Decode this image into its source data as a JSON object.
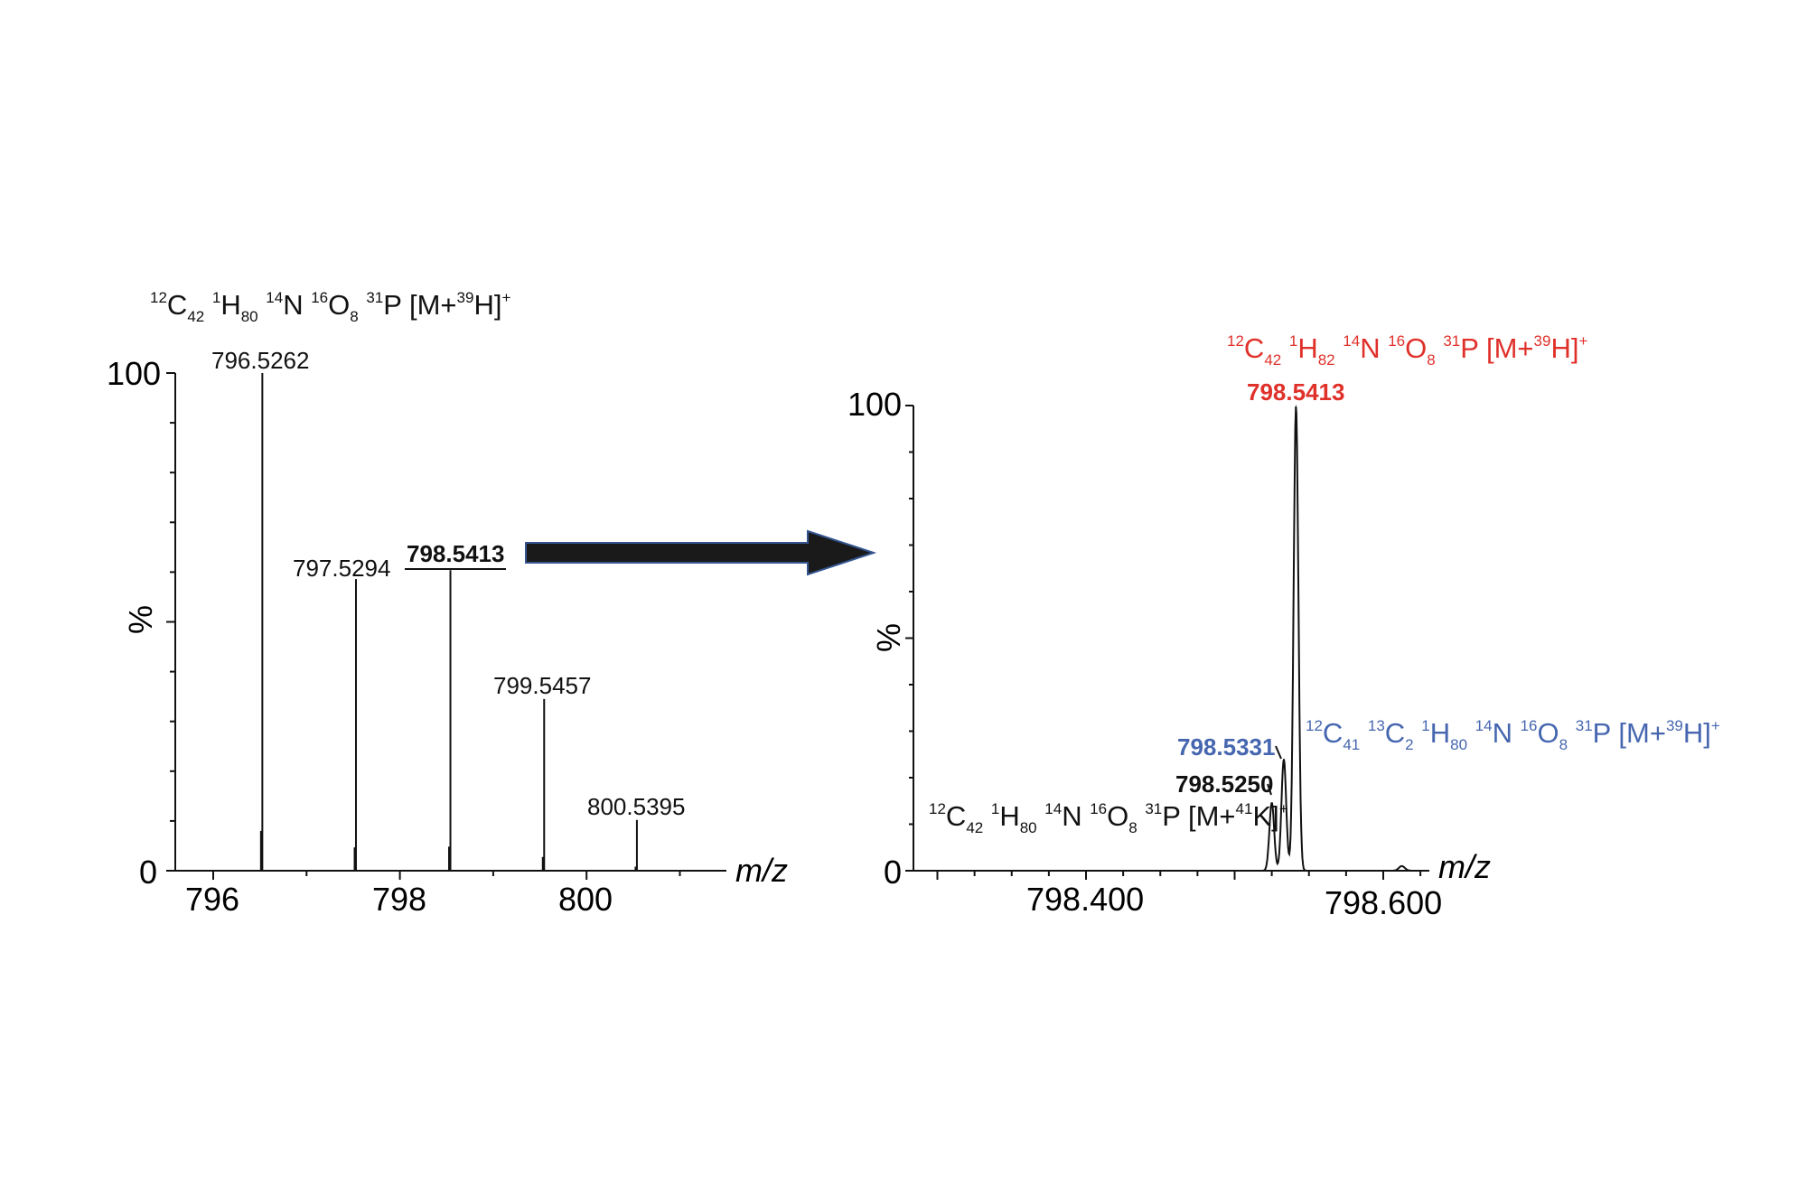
{
  "colors": {
    "black": "#111111",
    "red": "#e0302a",
    "blue": "#4667b0",
    "arrow_fill": "#1a1a1a",
    "arrow_stroke": "#34558f"
  },
  "chart_data": [
    {
      "type": "bar",
      "xlabel": "m/z",
      "ylabel": "%",
      "xlim": [
        795.6,
        801.5
      ],
      "ylim": [
        0,
        100
      ],
      "x_ticks": [
        "796",
        "798",
        "800"
      ],
      "y_ticks": [
        "0",
        "100"
      ],
      "grid": false,
      "formula": [
        {
          "s": "sup",
          "t": "12"
        },
        {
          "t": "C"
        },
        {
          "s": "sub",
          "t": "42"
        },
        {
          "t": " "
        },
        {
          "s": "sup",
          "t": "1"
        },
        {
          "t": "H"
        },
        {
          "s": "sub",
          "t": "80"
        },
        {
          "t": " "
        },
        {
          "s": "sup",
          "t": "14"
        },
        {
          "t": "N "
        },
        {
          "s": "sup",
          "t": "16"
        },
        {
          "t": "O"
        },
        {
          "s": "sub",
          "t": "8"
        },
        {
          "t": " "
        },
        {
          "s": "sup",
          "t": "31"
        },
        {
          "t": "P [M+"
        },
        {
          "s": "sup",
          "t": "39"
        },
        {
          "t": "H]"
        },
        {
          "s": "sup",
          "t": "+"
        }
      ],
      "peaks": [
        {
          "x": 796.5262,
          "y": 100,
          "label": "796.5262"
        },
        {
          "x": 797.5294,
          "y": 58.6,
          "label": "797.5294"
        },
        {
          "x": 798.5413,
          "y": 60.4,
          "label": "798.5413",
          "bold": true,
          "underline": true
        },
        {
          "x": 799.5457,
          "y": 34.5,
          "label": "799.5457"
        },
        {
          "x": 800.5395,
          "y": 10.2,
          "label": "800.5395"
        }
      ]
    },
    {
      "type": "line",
      "xlabel": "m/z",
      "ylabel": "%",
      "xlim": [
        798.284,
        798.631
      ],
      "ylim": [
        0,
        100
      ],
      "x_ticks": [
        "798.400",
        "798.600"
      ],
      "y_ticks": [
        "0",
        "100"
      ],
      "grid": false,
      "peaks": [
        {
          "x": 798.525,
          "y": 14.6,
          "label": "798.5250",
          "color": "black",
          "formula": [
            {
              "s": "sup",
              "t": "12"
            },
            {
              "t": "C"
            },
            {
              "s": "sub",
              "t": "42"
            },
            {
              "t": " "
            },
            {
              "s": "sup",
              "t": "1"
            },
            {
              "t": "H"
            },
            {
              "s": "sub",
              "t": "80"
            },
            {
              "t": " "
            },
            {
              "s": "sup",
              "t": "14"
            },
            {
              "t": "N "
            },
            {
              "s": "sup",
              "t": "16"
            },
            {
              "t": "O"
            },
            {
              "s": "sub",
              "t": "8"
            },
            {
              "t": " "
            },
            {
              "s": "sup",
              "t": "31"
            },
            {
              "t": "P [M+"
            },
            {
              "s": "sup",
              "t": "41"
            },
            {
              "t": "K]"
            },
            {
              "s": "sup",
              "t": "+"
            }
          ]
        },
        {
          "x": 798.5331,
          "y": 24,
          "label": "798.5331",
          "color": "blue",
          "formula": [
            {
              "s": "sup",
              "t": "12"
            },
            {
              "t": "C"
            },
            {
              "s": "sub",
              "t": "41"
            },
            {
              "t": " "
            },
            {
              "s": "sup",
              "t": "13"
            },
            {
              "t": "C"
            },
            {
              "s": "sub",
              "t": "2"
            },
            {
              "t": " "
            },
            {
              "s": "sup",
              "t": "1"
            },
            {
              "t": "H"
            },
            {
              "s": "sub",
              "t": "80"
            },
            {
              "t": " "
            },
            {
              "s": "sup",
              "t": "14"
            },
            {
              "t": "N "
            },
            {
              "s": "sup",
              "t": "16"
            },
            {
              "t": "O"
            },
            {
              "s": "sub",
              "t": "8"
            },
            {
              "t": " "
            },
            {
              "s": "sup",
              "t": "31"
            },
            {
              "t": "P [M+"
            },
            {
              "s": "sup",
              "t": "39"
            },
            {
              "t": "H]"
            },
            {
              "s": "sup",
              "t": "+"
            }
          ]
        },
        {
          "x": 798.5413,
          "y": 100,
          "label": "798.5413",
          "color": "red",
          "formula": [
            {
              "s": "sup",
              "t": "12"
            },
            {
              "t": "C"
            },
            {
              "s": "sub",
              "t": "42"
            },
            {
              "t": " "
            },
            {
              "s": "sup",
              "t": "1"
            },
            {
              "t": "H"
            },
            {
              "s": "sub",
              "t": "82"
            },
            {
              "t": " "
            },
            {
              "s": "sup",
              "t": "14"
            },
            {
              "t": "N "
            },
            {
              "s": "sup",
              "t": "16"
            },
            {
              "t": "O"
            },
            {
              "s": "sub",
              "t": "8"
            },
            {
              "t": " "
            },
            {
              "s": "sup",
              "t": "31"
            },
            {
              "t": "P [M+"
            },
            {
              "s": "sup",
              "t": "39"
            },
            {
              "t": "H]"
            },
            {
              "s": "sup",
              "t": "+"
            }
          ]
        },
        {
          "x": 798.6125,
          "y": 1
        }
      ]
    }
  ]
}
